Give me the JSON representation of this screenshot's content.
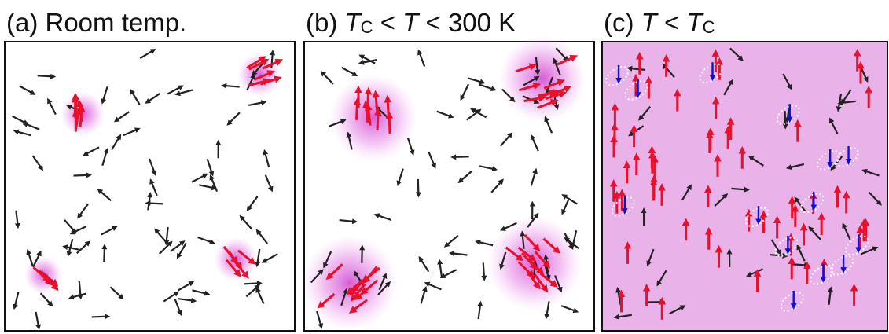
{
  "panels": [
    {
      "title": [
        {
          "text": "(a) Room temp.",
          "italic": false,
          "sub": false
        }
      ]
    },
    {
      "title": [
        {
          "text": "(b) ",
          "italic": false,
          "sub": false
        },
        {
          "text": "T",
          "italic": true,
          "sub": false
        },
        {
          "text": "C",
          "italic": false,
          "sub": true
        },
        {
          "text": " < ",
          "italic": false,
          "sub": false
        },
        {
          "text": "T",
          "italic": true,
          "sub": false
        },
        {
          "text": " < 300 K",
          "italic": false,
          "sub": false
        }
      ]
    },
    {
      "title": [
        {
          "text": "(c) ",
          "italic": false,
          "sub": false
        },
        {
          "text": "T",
          "italic": true,
          "sub": false
        },
        {
          "text": " < ",
          "italic": false,
          "sub": false
        },
        {
          "text": "T",
          "italic": true,
          "sub": false
        },
        {
          "text": "C",
          "italic": false,
          "sub": true
        }
      ]
    }
  ]
}
